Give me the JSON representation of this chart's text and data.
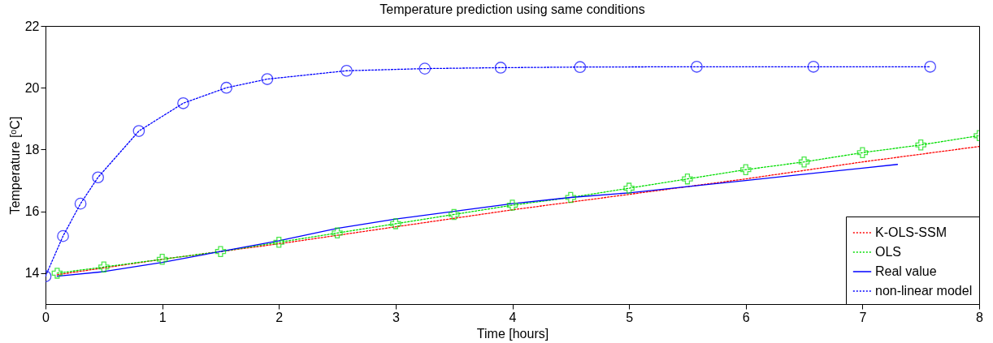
{
  "chart_data": {
    "type": "line",
    "title": "Temperature prediction using same conditions",
    "xlabel": "Time [hours]",
    "ylabel": "Temperature [ᵒC]",
    "xlim": [
      0,
      8
    ],
    "xticks": [
      0,
      1,
      2,
      3,
      4,
      5,
      6,
      7,
      8
    ],
    "ylim": [
      13,
      22
    ],
    "yticks": [
      14,
      16,
      18,
      20,
      22
    ],
    "grid": false,
    "legend": "bottom right",
    "series": [
      {
        "name": "K-OLS-SSM",
        "color": "#ff0000",
        "line_style": "dotted",
        "marker": "none",
        "x": [
          0.1,
          1,
          2,
          3,
          4,
          5,
          6,
          7,
          8
        ],
        "values": [
          13.95,
          14.45,
          14.95,
          15.5,
          16.05,
          16.55,
          17.05,
          17.6,
          18.1
        ]
      },
      {
        "name": "OLS",
        "color": "#00dd00",
        "line_style": "dotted",
        "marker": "cross",
        "x": [
          0.1,
          0.5,
          1,
          1.5,
          2,
          2.5,
          3,
          3.5,
          4,
          4.5,
          5,
          5.5,
          6,
          6.5,
          7,
          7.5,
          8
        ],
        "values": [
          14.0,
          14.2,
          14.45,
          14.7,
          15.0,
          15.3,
          15.6,
          15.9,
          16.2,
          16.45,
          16.75,
          17.05,
          17.35,
          17.6,
          17.9,
          18.15,
          18.45
        ]
      },
      {
        "name": "Real value",
        "color": "#0000ff",
        "line_style": "solid",
        "marker": "none",
        "x": [
          0.1,
          0.5,
          1,
          1.5,
          2,
          2.5,
          3,
          3.5,
          4,
          4.5,
          5,
          5.5,
          6,
          6.5,
          7,
          7.3
        ],
        "values": [
          13.9,
          14.05,
          14.35,
          14.7,
          15.05,
          15.45,
          15.75,
          16.0,
          16.25,
          16.45,
          16.6,
          16.8,
          17.0,
          17.2,
          17.4,
          17.52
        ]
      },
      {
        "name": "non-linear model",
        "color": "#0000ff",
        "line_style": "dotted",
        "marker": "circle",
        "x": [
          0,
          0.15,
          0.3,
          0.45,
          0.8,
          1.18,
          1.55,
          1.9,
          2.58,
          3.25,
          3.9,
          4.58,
          5.58,
          6.58,
          7.58
        ],
        "values": [
          13.9,
          15.2,
          16.25,
          17.1,
          18.6,
          19.5,
          20.0,
          20.28,
          20.55,
          20.62,
          20.65,
          20.67,
          20.68,
          20.68,
          20.68
        ]
      }
    ]
  }
}
